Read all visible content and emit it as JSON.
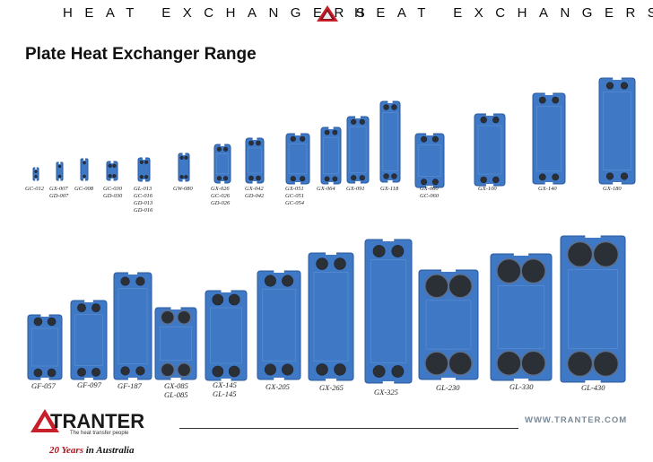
{
  "header": {
    "left_text": "HEAT EXCHANGERS",
    "right_text": "HEAT EXCHANGERS"
  },
  "title": "Plate Heat Exchanger Range",
  "colors": {
    "plate_blue": "#3f78c4",
    "plate_dark": "#2a5a9e",
    "brand_red": "#c8202a",
    "accent_grey": "#7c8a95"
  },
  "small_range": [
    {
      "labels": [
        "GC-012"
      ]
    },
    {
      "labels": [
        "GX-007",
        "GD-007"
      ]
    },
    {
      "labels": [
        "GC-008"
      ]
    },
    {
      "labels": [
        "GC-030",
        "GD-030"
      ]
    },
    {
      "labels": [
        "GL-013",
        "GC-016",
        "GD-013",
        "GD-016"
      ]
    },
    {
      "labels": [
        "GW-080"
      ]
    },
    {
      "labels": [
        "GX-026",
        "GC-026",
        "GD-026"
      ]
    },
    {
      "labels": [
        "GX-042",
        "GD-042"
      ]
    },
    {
      "labels": [
        "GX-051",
        "GC-051",
        "GC-054"
      ]
    },
    {
      "labels": [
        "GX-064"
      ]
    },
    {
      "labels": [
        "GX-091"
      ]
    },
    {
      "labels": [
        "GX-118"
      ]
    },
    {
      "labels": [
        "GX-060",
        "GC-060"
      ]
    },
    {
      "labels": [
        "GX-100"
      ]
    },
    {
      "labels": [
        "GX-140"
      ]
    },
    {
      "labels": [
        "GX-180"
      ]
    }
  ],
  "large_range": [
    {
      "labels": [
        "GF-057"
      ]
    },
    {
      "labels": [
        "GF-097"
      ]
    },
    {
      "labels": [
        "GF-187"
      ]
    },
    {
      "labels": [
        "GX-085",
        "GL-085"
      ]
    },
    {
      "labels": [
        "GX-145",
        "GL-145"
      ]
    },
    {
      "labels": [
        "GX-205"
      ]
    },
    {
      "labels": [
        "GX-265"
      ]
    },
    {
      "labels": [
        "GX-325"
      ]
    },
    {
      "labels": [
        "GL-230"
      ]
    },
    {
      "labels": [
        "GL-330"
      ]
    },
    {
      "labels": [
        "GL-430"
      ]
    }
  ],
  "footer": {
    "brand": "TRANTER",
    "tagline": "The heat transfer people",
    "years_number": "20 Years",
    "years_suffix": " in Australia",
    "url": "WWW.TRANTER.COM"
  }
}
